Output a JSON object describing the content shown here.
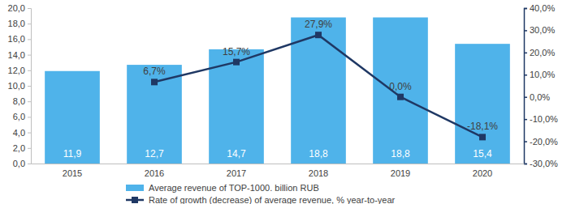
{
  "chart_data": {
    "type": "bar",
    "categories": [
      "2015",
      "2016",
      "2017",
      "2018",
      "2019",
      "2020"
    ],
    "series": [
      {
        "name": "Average revenue of TOP-1000. billion RUB",
        "type": "bar",
        "color": "#4fb3ea",
        "values": [
          11.9,
          12.7,
          14.7,
          18.8,
          18.8,
          15.4
        ],
        "value_labels": [
          "11,9",
          "12,7",
          "14,7",
          "18,8",
          "18,8",
          "15,4"
        ]
      },
      {
        "name": "Rate of growth (decrease) of average revenue, % year-to-year",
        "type": "line",
        "axis": "y2",
        "color": "#1f3864",
        "marker": "square",
        "line_style": "solid",
        "values": [
          null,
          6.7,
          15.7,
          27.9,
          0.0,
          -18.1
        ],
        "value_labels": [
          null,
          "6,7%",
          "15,7%",
          "27,9%",
          "0,0%",
          "-18,1%"
        ]
      }
    ],
    "ylim": [
      0,
      20
    ],
    "yticks": [
      {
        "value": 0,
        "label": "0,0"
      },
      {
        "value": 2,
        "label": "2,0"
      },
      {
        "value": 4,
        "label": "4,0"
      },
      {
        "value": 6,
        "label": "6,0"
      },
      {
        "value": 8,
        "label": "8,0"
      },
      {
        "value": 10,
        "label": "10,0"
      },
      {
        "value": 12,
        "label": "12,0"
      },
      {
        "value": 14,
        "label": "14,0"
      },
      {
        "value": 16,
        "label": "16,0"
      },
      {
        "value": 18,
        "label": "18,0"
      },
      {
        "value": 20,
        "label": "20,0"
      }
    ],
    "y2lim": [
      -30,
      40
    ],
    "y2ticks": [
      {
        "value": -30,
        "label": "-30,0%"
      },
      {
        "value": -20,
        "label": "-20,0%"
      },
      {
        "value": -10,
        "label": "-10,0%"
      },
      {
        "value": 0,
        "label": "0,0%"
      },
      {
        "value": 10,
        "label": "10,0%"
      },
      {
        "value": 20,
        "label": "20,0%"
      },
      {
        "value": 30,
        "label": "30,0%"
      },
      {
        "value": 40,
        "label": "40,0%"
      }
    ],
    "data_labels": true,
    "grid": false,
    "legend": "bottom"
  }
}
